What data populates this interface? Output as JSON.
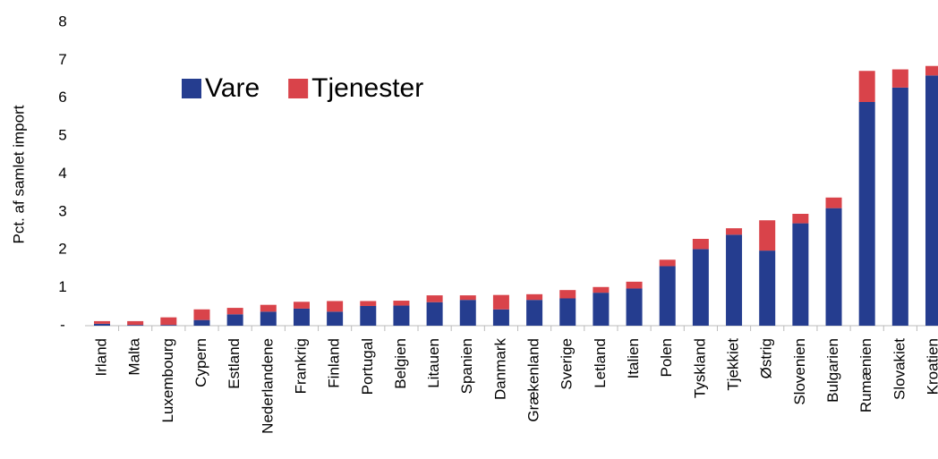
{
  "chart_data": {
    "type": "stacked_bar",
    "y_label": "Pct. af samlet import",
    "categories": [
      "Irland",
      "Malta",
      "Luxembourg",
      "Cypern",
      "Estland",
      "Nederlandene",
      "Frankrig",
      "Finland",
      "Portugal",
      "Belgien",
      "Litauen",
      "Spanien",
      "Danmark",
      "Grækenland",
      "Sverige",
      "Letland",
      "Italien",
      "Polen",
      "Tyskland",
      "Tjekkiet",
      "Østrig",
      "Slovenien",
      "Bulgarien",
      "Rumænien",
      "Slovakiet",
      "Kroatien"
    ],
    "series": [
      {
        "name": "Vare",
        "color": "#253d8f",
        "values": [
          0.05,
          0.02,
          0.02,
          0.15,
          0.3,
          0.37,
          0.45,
          0.37,
          0.52,
          0.53,
          0.62,
          0.68,
          0.43,
          0.68,
          0.72,
          0.87,
          0.98,
          1.57,
          2.02,
          2.4,
          1.98,
          2.7,
          3.1,
          5.9,
          6.28,
          6.6
        ]
      },
      {
        "name": "Tjenester",
        "color": "#d9434a",
        "values": [
          0.07,
          0.1,
          0.2,
          0.28,
          0.17,
          0.18,
          0.18,
          0.28,
          0.13,
          0.13,
          0.18,
          0.12,
          0.38,
          0.15,
          0.22,
          0.15,
          0.18,
          0.17,
          0.27,
          0.17,
          0.8,
          0.25,
          0.28,
          0.82,
          0.48,
          0.25
        ]
      }
    ],
    "ylim": [
      0,
      8
    ],
    "yticks": [
      {
        "value": 0,
        "label": "-"
      },
      1,
      2,
      3,
      4,
      5,
      6,
      7,
      8
    ],
    "grid": false,
    "legend_position": "upper left"
  }
}
